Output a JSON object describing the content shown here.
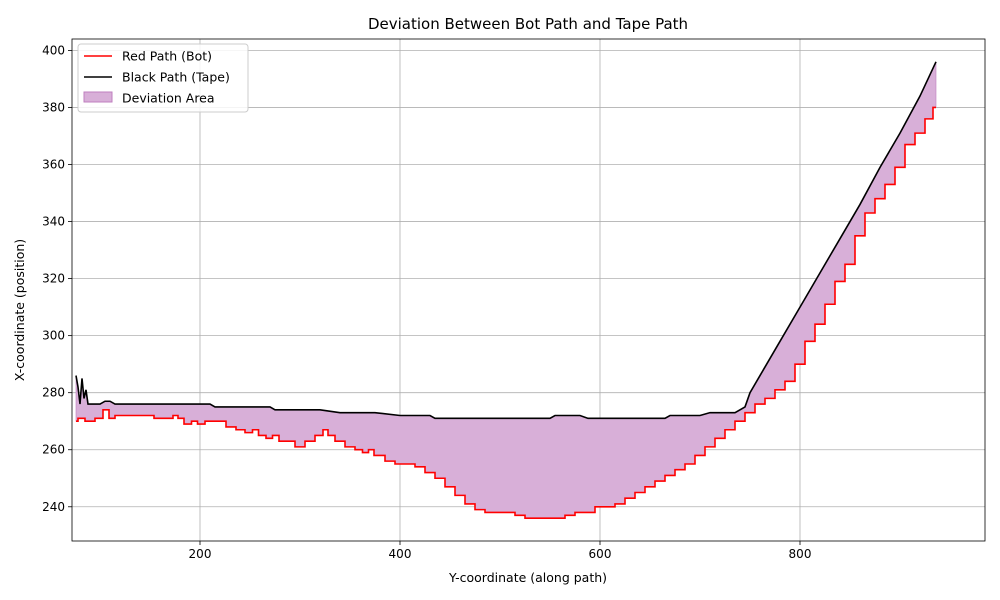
{
  "chart_data": {
    "type": "line",
    "title": "Deviation Between Bot Path and Tape Path",
    "xlabel": "Y-coordinate (along path)",
    "ylabel": "X-coordinate (position)",
    "xlim": [
      72,
      985
    ],
    "ylim": [
      228,
      404
    ],
    "xticks": [
      200,
      400,
      600,
      800
    ],
    "yticks": [
      240,
      260,
      280,
      300,
      320,
      340,
      360,
      380,
      400
    ],
    "grid": true,
    "legend_position": "top-left",
    "legend": [
      "Red Path (Bot)",
      "Black Path (Tape)",
      "Deviation Area"
    ],
    "colors": {
      "bot": "#ff0000",
      "tape": "#000000",
      "fill": "#d8afd8",
      "fill_edge": "#bf7fbf",
      "grid": "#b0b0b0"
    },
    "series": [
      {
        "name": "Red Path (Bot)",
        "x": [
          76,
          80,
          90,
          100,
          106,
          112,
          118,
          130,
          150,
          158,
          170,
          176,
          180,
          188,
          195,
          200,
          210,
          220,
          232,
          240,
          250,
          255,
          262,
          270,
          275,
          283,
          290,
          300,
          310,
          320,
          326,
          330,
          340,
          350,
          360,
          365,
          372,
          376,
          380,
          390,
          400,
          410,
          420,
          430,
          440,
          450,
          460,
          470,
          480,
          490,
          500,
          510,
          520,
          530,
          540,
          550,
          560,
          570,
          580,
          590,
          600,
          610,
          620,
          630,
          640,
          650,
          660,
          670,
          680,
          690,
          700,
          710,
          720,
          730,
          740,
          750,
          760,
          770,
          780,
          790,
          800,
          810,
          820,
          830,
          840,
          850,
          860,
          870,
          880,
          890,
          900,
          910,
          920,
          930,
          936
        ],
        "y": [
          270,
          271,
          270,
          271,
          274,
          271,
          272,
          272,
          272,
          271,
          271,
          272,
          271,
          269,
          270,
          269,
          270,
          270,
          268,
          267,
          266,
          267,
          265,
          264,
          265,
          263,
          263,
          261,
          263,
          265,
          267,
          265,
          263,
          261,
          260,
          259,
          260,
          258,
          258,
          256,
          255,
          255,
          254,
          252,
          250,
          247,
          244,
          241,
          239,
          238,
          238,
          238,
          237,
          236,
          236,
          236,
          236,
          237,
          238,
          238,
          240,
          240,
          241,
          243,
          245,
          247,
          249,
          251,
          253,
          255,
          258,
          261,
          264,
          267,
          270,
          273,
          276,
          278,
          281,
          284,
          290,
          298,
          304,
          311,
          319,
          325,
          335,
          343,
          348,
          353,
          359,
          367,
          371,
          376,
          380
        ]
      },
      {
        "name": "Black Path (Tape)",
        "x": [
          76,
          78,
          80,
          82,
          84,
          86,
          88,
          90,
          95,
          100,
          105,
          110,
          115,
          130,
          150,
          170,
          190,
          210,
          215,
          240,
          270,
          275,
          300,
          320,
          340,
          375,
          400,
          430,
          435,
          460,
          500,
          550,
          555,
          580,
          588,
          600,
          640,
          665,
          670,
          700,
          710,
          735,
          745,
          750,
          760,
          780,
          800,
          820,
          840,
          860,
          880,
          900,
          920,
          936
        ],
        "y": [
          286,
          282,
          276,
          285,
          278,
          281,
          276,
          276,
          276,
          276,
          277,
          277,
          276,
          276,
          276,
          276,
          276,
          276,
          275,
          275,
          275,
          274,
          274,
          274,
          273,
          273,
          272,
          272,
          271,
          271,
          271,
          271,
          272,
          272,
          271,
          271,
          271,
          271,
          272,
          272,
          273,
          273,
          275,
          280,
          286,
          298,
          310,
          322,
          334,
          346,
          359,
          371,
          384,
          396
        ]
      }
    ]
  }
}
